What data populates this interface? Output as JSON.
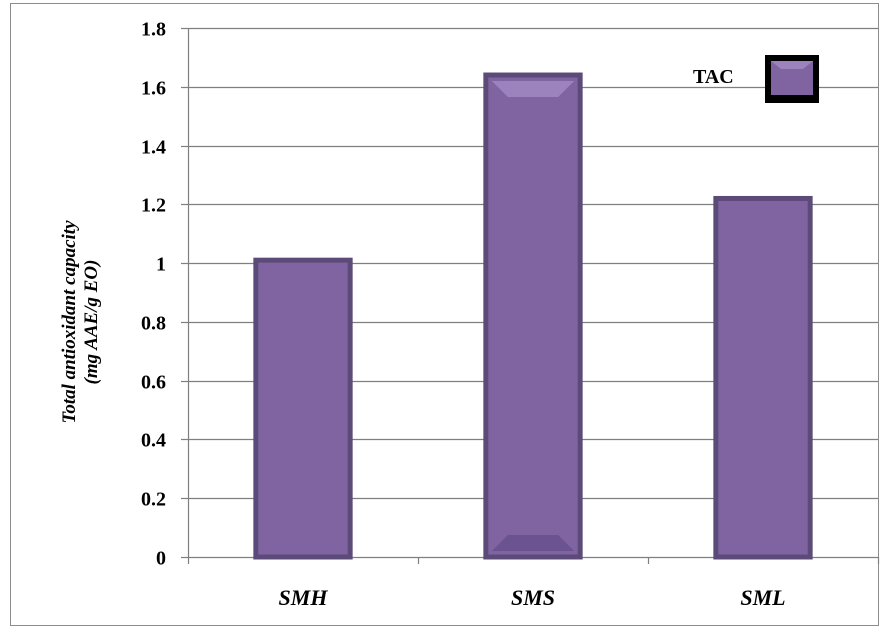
{
  "chart_data": {
    "type": "bar",
    "categories": [
      "SMH",
      "SMS",
      "SML"
    ],
    "series": [
      {
        "name": "TAC",
        "values": [
          1.01,
          1.64,
          1.22
        ]
      }
    ],
    "ylabel_line1": "Total antioxidant capacity",
    "ylabel_line2": "(mg  AAE/g EO)",
    "ylim": [
      0,
      1.8
    ],
    "yticks": [
      "0",
      "0.2",
      "0.4",
      "0.6",
      "0.8",
      "1",
      "1.2",
      "1.4",
      "1.6",
      "1.8"
    ],
    "grid": true,
    "legend_position": "top-right",
    "colors": {
      "bar_fill": "#8064A2",
      "bar_border": "#5C4A78",
      "bar_highlight": "#9C83BD",
      "bar_shadow": "#6A5390",
      "gridline": "#7f7f7f",
      "axis": "#7f7f7f"
    }
  }
}
